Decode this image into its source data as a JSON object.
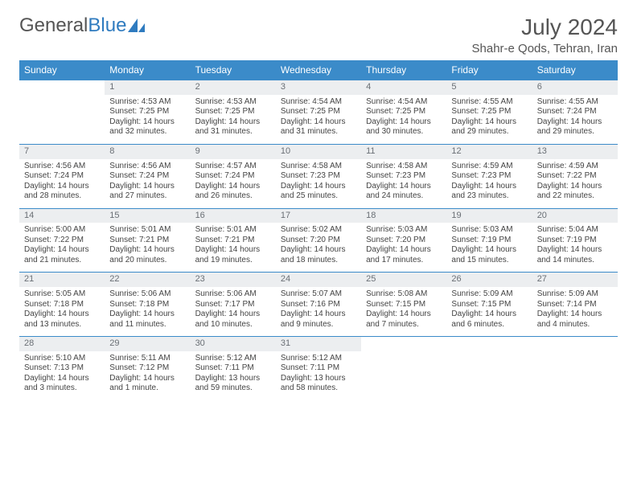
{
  "brand": {
    "part1": "General",
    "part2": "Blue"
  },
  "title": "July 2024",
  "location": "Shahr-e Qods, Tehran, Iran",
  "colors": {
    "header_bg": "#3b8bc9",
    "header_text": "#ffffff",
    "daynum_bg": "#eceef0",
    "daynum_text": "#6a6f75",
    "rule": "#3b8bc9",
    "body_text": "#444444",
    "title_text": "#555555"
  },
  "weekdays": [
    "Sunday",
    "Monday",
    "Tuesday",
    "Wednesday",
    "Thursday",
    "Friday",
    "Saturday"
  ],
  "weeks": [
    [
      null,
      {
        "n": "1",
        "sr": "4:53 AM",
        "ss": "7:25 PM",
        "dl": "14 hours and 32 minutes."
      },
      {
        "n": "2",
        "sr": "4:53 AM",
        "ss": "7:25 PM",
        "dl": "14 hours and 31 minutes."
      },
      {
        "n": "3",
        "sr": "4:54 AM",
        "ss": "7:25 PM",
        "dl": "14 hours and 31 minutes."
      },
      {
        "n": "4",
        "sr": "4:54 AM",
        "ss": "7:25 PM",
        "dl": "14 hours and 30 minutes."
      },
      {
        "n": "5",
        "sr": "4:55 AM",
        "ss": "7:25 PM",
        "dl": "14 hours and 29 minutes."
      },
      {
        "n": "6",
        "sr": "4:55 AM",
        "ss": "7:24 PM",
        "dl": "14 hours and 29 minutes."
      }
    ],
    [
      {
        "n": "7",
        "sr": "4:56 AM",
        "ss": "7:24 PM",
        "dl": "14 hours and 28 minutes."
      },
      {
        "n": "8",
        "sr": "4:56 AM",
        "ss": "7:24 PM",
        "dl": "14 hours and 27 minutes."
      },
      {
        "n": "9",
        "sr": "4:57 AM",
        "ss": "7:24 PM",
        "dl": "14 hours and 26 minutes."
      },
      {
        "n": "10",
        "sr": "4:58 AM",
        "ss": "7:23 PM",
        "dl": "14 hours and 25 minutes."
      },
      {
        "n": "11",
        "sr": "4:58 AM",
        "ss": "7:23 PM",
        "dl": "14 hours and 24 minutes."
      },
      {
        "n": "12",
        "sr": "4:59 AM",
        "ss": "7:23 PM",
        "dl": "14 hours and 23 minutes."
      },
      {
        "n": "13",
        "sr": "4:59 AM",
        "ss": "7:22 PM",
        "dl": "14 hours and 22 minutes."
      }
    ],
    [
      {
        "n": "14",
        "sr": "5:00 AM",
        "ss": "7:22 PM",
        "dl": "14 hours and 21 minutes."
      },
      {
        "n": "15",
        "sr": "5:01 AM",
        "ss": "7:21 PM",
        "dl": "14 hours and 20 minutes."
      },
      {
        "n": "16",
        "sr": "5:01 AM",
        "ss": "7:21 PM",
        "dl": "14 hours and 19 minutes."
      },
      {
        "n": "17",
        "sr": "5:02 AM",
        "ss": "7:20 PM",
        "dl": "14 hours and 18 minutes."
      },
      {
        "n": "18",
        "sr": "5:03 AM",
        "ss": "7:20 PM",
        "dl": "14 hours and 17 minutes."
      },
      {
        "n": "19",
        "sr": "5:03 AM",
        "ss": "7:19 PM",
        "dl": "14 hours and 15 minutes."
      },
      {
        "n": "20",
        "sr": "5:04 AM",
        "ss": "7:19 PM",
        "dl": "14 hours and 14 minutes."
      }
    ],
    [
      {
        "n": "21",
        "sr": "5:05 AM",
        "ss": "7:18 PM",
        "dl": "14 hours and 13 minutes."
      },
      {
        "n": "22",
        "sr": "5:06 AM",
        "ss": "7:18 PM",
        "dl": "14 hours and 11 minutes."
      },
      {
        "n": "23",
        "sr": "5:06 AM",
        "ss": "7:17 PM",
        "dl": "14 hours and 10 minutes."
      },
      {
        "n": "24",
        "sr": "5:07 AM",
        "ss": "7:16 PM",
        "dl": "14 hours and 9 minutes."
      },
      {
        "n": "25",
        "sr": "5:08 AM",
        "ss": "7:15 PM",
        "dl": "14 hours and 7 minutes."
      },
      {
        "n": "26",
        "sr": "5:09 AM",
        "ss": "7:15 PM",
        "dl": "14 hours and 6 minutes."
      },
      {
        "n": "27",
        "sr": "5:09 AM",
        "ss": "7:14 PM",
        "dl": "14 hours and 4 minutes."
      }
    ],
    [
      {
        "n": "28",
        "sr": "5:10 AM",
        "ss": "7:13 PM",
        "dl": "14 hours and 3 minutes."
      },
      {
        "n": "29",
        "sr": "5:11 AM",
        "ss": "7:12 PM",
        "dl": "14 hours and 1 minute."
      },
      {
        "n": "30",
        "sr": "5:12 AM",
        "ss": "7:11 PM",
        "dl": "13 hours and 59 minutes."
      },
      {
        "n": "31",
        "sr": "5:12 AM",
        "ss": "7:11 PM",
        "dl": "13 hours and 58 minutes."
      },
      null,
      null,
      null
    ]
  ],
  "labels": {
    "sunrise": "Sunrise: ",
    "sunset": "Sunset: ",
    "daylight": "Daylight: "
  }
}
